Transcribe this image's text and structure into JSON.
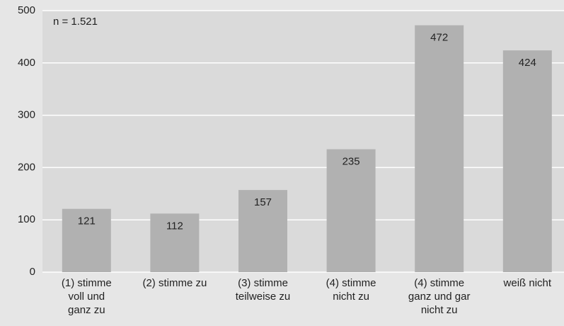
{
  "chart_data": {
    "type": "bar",
    "annotation": "n = 1.521",
    "categories": [
      "(1) stimme\nvoll und\nganz zu",
      "(2) stimme zu",
      "(3) stimme\nteilweise zu",
      "(4) stimme\nnicht zu",
      "(4) stimme\nganz und gar\nnicht zu",
      "weiß nicht"
    ],
    "values": [
      121,
      112,
      157,
      235,
      472,
      424
    ],
    "color": "#b1b1b1",
    "ylim": [
      0,
      500
    ],
    "yticks": [
      0,
      100,
      200,
      300,
      400,
      500
    ],
    "grid": true
  }
}
